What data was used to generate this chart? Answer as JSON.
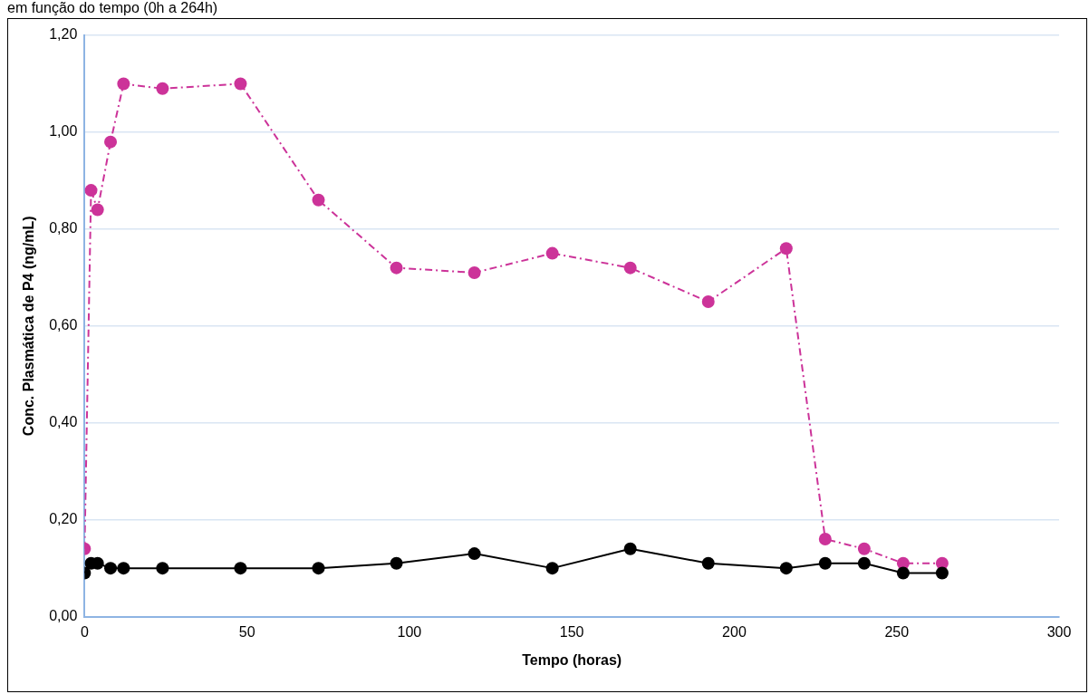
{
  "chart_data": {
    "type": "line",
    "title": "em função do tempo (0h a 264h)",
    "xlabel": "Tempo (horas)",
    "ylabel": "Conc. Plasmática de P4 (ng/mL)",
    "x": [
      0,
      2,
      4,
      8,
      12,
      24,
      48,
      72,
      96,
      120,
      144,
      168,
      192,
      216,
      228,
      240,
      252,
      264
    ],
    "series": [
      {
        "color": "#cc3399",
        "line_style": "dashdot",
        "values": [
          0.14,
          0.88,
          0.84,
          0.98,
          1.1,
          1.09,
          1.1,
          0.86,
          0.72,
          0.71,
          0.75,
          0.72,
          0.65,
          0.76,
          0.16,
          0.14,
          0.11,
          0.11
        ]
      },
      {
        "color": "#000000",
        "line_style": "solid",
        "values": [
          0.09,
          0.11,
          0.11,
          0.1,
          0.1,
          0.1,
          0.1,
          0.1,
          0.11,
          0.13,
          0.1,
          0.14,
          0.11,
          0.1,
          0.11,
          0.11,
          0.09,
          0.09
        ]
      }
    ],
    "xlim": [
      0,
      300
    ],
    "xticks": [
      0,
      50,
      100,
      150,
      200,
      250,
      300
    ],
    "ylim": [
      0,
      1.2
    ],
    "yticks": [
      {
        "value": 0,
        "label": "0,00"
      },
      {
        "value": 0.2,
        "label": "0,20"
      },
      {
        "value": 0.4,
        "label": "0,40"
      },
      {
        "value": 0.6,
        "label": "0,60"
      },
      {
        "value": 0.8,
        "label": "0,80"
      },
      {
        "value": 1.0,
        "label": "1,00"
      },
      {
        "value": 1.2,
        "label": "1,20"
      }
    ],
    "grid": "y",
    "legend": false,
    "marker": "circle"
  }
}
